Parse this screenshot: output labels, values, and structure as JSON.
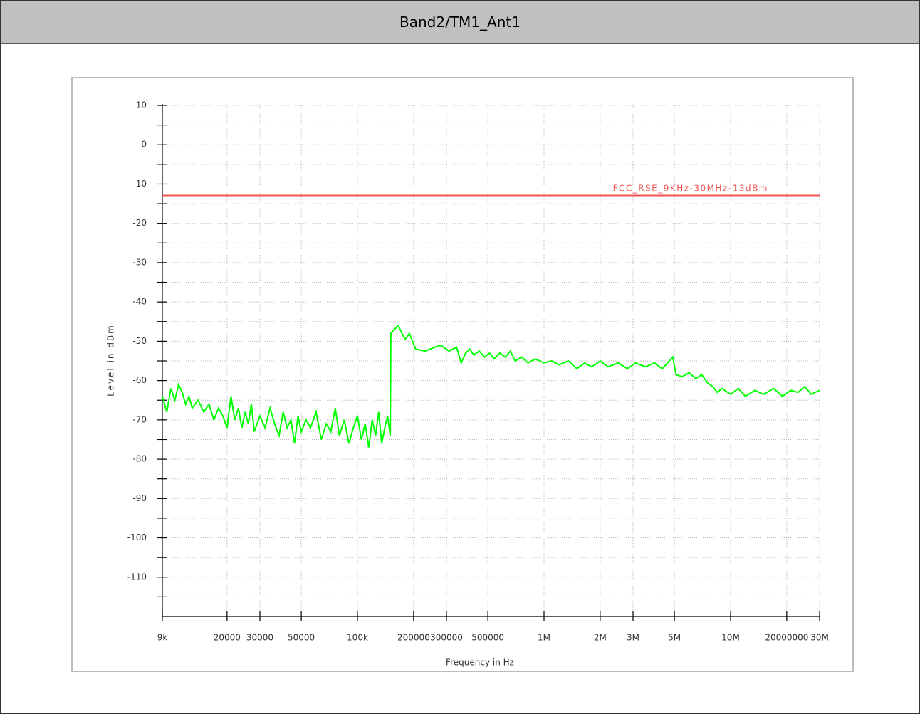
{
  "header": {
    "title": "Band2/TM1_Ant1"
  },
  "chart_data": {
    "type": "line",
    "xlabel": "Frequency in Hz",
    "ylabel": "Level in dBm",
    "xscale": "log",
    "grid": true,
    "xlim": [
      9000,
      30000000
    ],
    "ylim": [
      -120,
      10
    ],
    "xticks": [
      {
        "value": 9000,
        "label": "9k"
      },
      20000,
      30000,
      50000,
      {
        "value": 100000,
        "label": "100k"
      },
      200000,
      300000,
      500000,
      {
        "value": 1000000,
        "label": "1M"
      },
      {
        "value": 2000000,
        "label": "2M"
      },
      {
        "value": 3000000,
        "label": "3M"
      },
      {
        "value": 5000000,
        "label": "5M"
      },
      {
        "value": 10000000,
        "label": "10M"
      },
      20000000,
      {
        "value": 30000000,
        "label": "30M"
      }
    ],
    "yticks": [
      10,
      0,
      -10,
      -20,
      -30,
      -40,
      -50,
      -60,
      -70,
      -80,
      -90,
      -100,
      -110
    ],
    "yminorticks": [
      5,
      -5,
      -15,
      -25,
      -35,
      -45,
      -55,
      -65,
      -75,
      -85,
      -95,
      -105,
      -115
    ],
    "limit_line": {
      "name": "FCC_RSE_9KHz-30MHz-13dBm",
      "value": -13,
      "color": "#f05454"
    },
    "x": [
      9000,
      9500,
      10000,
      10500,
      11000,
      11500,
      12000,
      12500,
      13000,
      14000,
      15000,
      16000,
      17000,
      18000,
      19000,
      20000,
      21000,
      22000,
      23000,
      24000,
      25000,
      26000,
      27000,
      28000,
      30000,
      32000,
      34000,
      36000,
      38000,
      40000,
      42000,
      44000,
      46000,
      48000,
      50000,
      53000,
      56000,
      60000,
      64000,
      68000,
      72000,
      76000,
      80000,
      85000,
      90000,
      95000,
      100000,
      105000,
      110000,
      115000,
      120000,
      125000,
      130000,
      135000,
      140000,
      145000,
      150000,
      151000,
      165000,
      180000,
      190000,
      205000,
      230000,
      260000,
      280000,
      310000,
      340000,
      360000,
      380000,
      400000,
      420000,
      450000,
      480000,
      510000,
      540000,
      580000,
      620000,
      660000,
      700000,
      760000,
      820000,
      900000,
      1000000,
      1100000,
      1200000,
      1350000,
      1500000,
      1650000,
      1800000,
      2000000,
      2200000,
      2500000,
      2800000,
      3100000,
      3500000,
      3900000,
      4300000,
      4700000,
      4900000,
      5100000,
      5500000,
      6000000,
      6500000,
      7000000,
      7500000,
      8000000,
      8500000,
      9000000,
      10000000,
      11000000,
      12000000,
      13500000,
      15000000,
      17000000,
      19000000,
      21000000,
      23000000,
      25000000,
      27000000,
      30000000
    ],
    "series": [
      {
        "color": "#00ff00",
        "values": [
          -64,
          -68,
          -62,
          -65,
          -61,
          -63,
          -66,
          -64,
          -67,
          -65,
          -68,
          -66,
          -70,
          -67,
          -69,
          -72,
          -64,
          -70,
          -67,
          -72,
          -68,
          -71,
          -66,
          -73,
          -69,
          -72,
          -67,
          -71,
          -74,
          -68,
          -72,
          -70,
          -76,
          -69,
          -73,
          -70,
          -72,
          -68,
          -75,
          -71,
          -73,
          -67,
          -74,
          -70,
          -76,
          -72,
          -69,
          -75,
          -71,
          -77,
          -70,
          -74,
          -68,
          -76,
          -72,
          -69,
          -74,
          -48,
          -46,
          -49.5,
          -48,
          -52,
          -52.5,
          -51.5,
          -51,
          -52.5,
          -51.5,
          -55.5,
          -53,
          -52,
          -53.5,
          -52.5,
          -54,
          -53,
          -54.5,
          -53,
          -54,
          -52.5,
          -55,
          -54,
          -55.5,
          -54.5,
          -55.5,
          -55,
          -56,
          -55,
          -57,
          -55.5,
          -56.5,
          -55,
          -56.5,
          -55.5,
          -57,
          -55.5,
          -56.5,
          -55.5,
          -57,
          -55,
          -54,
          -58.5,
          -59,
          -58,
          -59.5,
          -58.5,
          -60.5,
          -61.5,
          -63,
          -62,
          -63.5,
          -62,
          -64,
          -62.5,
          -63.5,
          -62,
          -64,
          -62.5,
          -63,
          -61.5,
          -63.5,
          -62.5
        ]
      }
    ]
  }
}
